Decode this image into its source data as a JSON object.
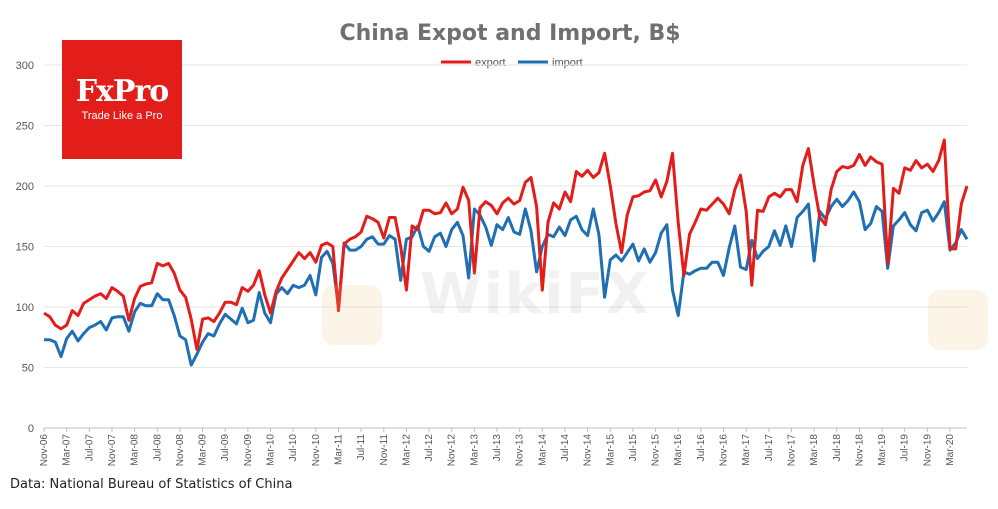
{
  "logo": {
    "name": "FxPro",
    "tagline": "Trade Like a Pro"
  },
  "watermark": "WikiFX",
  "source": "Data: National Bureau of Statistics of China",
  "colors": {
    "export": "#e31d1a",
    "import": "#1f6fb2",
    "grid": "#e6e6e6",
    "axis": "#bfbfbf"
  },
  "chart_data": {
    "type": "line",
    "title": "China Expot and Import, B$",
    "xlabel": "",
    "ylabel": "",
    "ylim": [
      0,
      300
    ],
    "yticks": [
      "0",
      "50",
      "100",
      "150",
      "200",
      "250",
      "300"
    ],
    "grid": true,
    "legend": "top-center",
    "tick_labels": [
      "Nov-06",
      "Mar-07",
      "Jul-07",
      "Nov-07",
      "Mar-08",
      "Jul-08",
      "Nov-08",
      "Mar-09",
      "Jul-09",
      "Nov-09",
      "Mar-10",
      "Jul-10",
      "Nov-10",
      "Mar-11",
      "Jul-11",
      "Nov-11",
      "Mar-12",
      "Jul-12",
      "Nov-12",
      "Mar-13",
      "Jul-13",
      "Nov-13",
      "Mar-14",
      "Jul-14",
      "Nov-14",
      "Mar-15",
      "Jul-15",
      "Nov-15",
      "Mar-16",
      "Jul-16",
      "Nov-16",
      "Mar-17",
      "Jul-17",
      "Nov-17",
      "Mar-18",
      "Jul-18",
      "Nov-18",
      "Mar-19",
      "Jul-19",
      "Nov-19",
      "Mar-20"
    ],
    "x_start": "Nov-06",
    "x_end": "May-20",
    "series": [
      {
        "name": "export",
        "values": [
          95,
          92,
          85,
          82,
          85,
          97,
          93,
          103,
          106,
          109,
          111,
          107,
          116,
          113,
          109,
          89,
          107,
          117,
          119,
          120,
          136,
          134,
          136,
          128,
          114,
          108,
          90,
          65,
          90,
          91,
          88,
          95,
          104,
          104,
          102,
          116,
          113,
          118,
          130,
          110,
          95,
          113,
          124,
          131,
          138,
          145,
          140,
          145,
          137,
          151,
          153,
          150,
          97,
          152,
          156,
          158,
          162,
          175,
          173,
          170,
          157,
          174,
          174,
          150,
          114,
          167,
          164,
          180,
          180,
          177,
          178,
          186,
          177,
          181,
          199,
          188,
          128,
          182,
          187,
          184,
          177,
          186,
          190,
          185,
          188,
          203,
          207,
          183,
          114,
          170,
          186,
          181,
          195,
          187,
          212,
          208,
          213,
          207,
          211,
          227,
          200,
          169,
          145,
          176,
          191,
          192,
          195,
          196,
          205,
          191,
          204,
          227,
          170,
          126,
          160,
          170,
          181,
          180,
          185,
          190,
          185,
          177,
          197,
          209,
          179,
          118,
          180,
          179,
          191,
          194,
          191,
          197,
          197,
          187,
          217,
          231,
          201,
          174,
          168,
          197,
          212,
          216,
          215,
          217,
          226,
          217,
          224,
          220,
          218,
          136,
          198,
          194,
          215,
          213,
          221,
          215,
          218,
          212,
          221,
          238,
          148,
          148,
          185,
          200
        ]
      },
      {
        "name": "import",
        "values": [
          73,
          73,
          71,
          59,
          74,
          80,
          72,
          78,
          83,
          85,
          88,
          81,
          91,
          92,
          92,
          80,
          96,
          103,
          101,
          101,
          111,
          106,
          106,
          93,
          76,
          73,
          52,
          61,
          71,
          78,
          76,
          86,
          94,
          90,
          86,
          99,
          87,
          89,
          112,
          95,
          87,
          111,
          116,
          111,
          118,
          116,
          118,
          126,
          110,
          141,
          146,
          136,
          100,
          153,
          147,
          147,
          150,
          156,
          158,
          152,
          152,
          159,
          156,
          122,
          156,
          158,
          167,
          150,
          146,
          158,
          161,
          150,
          164,
          170,
          159,
          124,
          181,
          176,
          166,
          151,
          168,
          164,
          174,
          162,
          160,
          181,
          163,
          129,
          150,
          160,
          158,
          166,
          159,
          172,
          175,
          164,
          159,
          181,
          160,
          108,
          139,
          143,
          138,
          145,
          152,
          138,
          148,
          137,
          145,
          161,
          168,
          114,
          93,
          129,
          127,
          130,
          132,
          132,
          137,
          137,
          126,
          149,
          167,
          133,
          131,
          155,
          140,
          146,
          150,
          163,
          151,
          167,
          150,
          174,
          179,
          185,
          138,
          179,
          173,
          183,
          189,
          183,
          188,
          195,
          187,
          164,
          169,
          183,
          179,
          132,
          167,
          172,
          178,
          168,
          163,
          178,
          180,
          171,
          178,
          187,
          147,
          153,
          164,
          156
        ]
      }
    ]
  }
}
